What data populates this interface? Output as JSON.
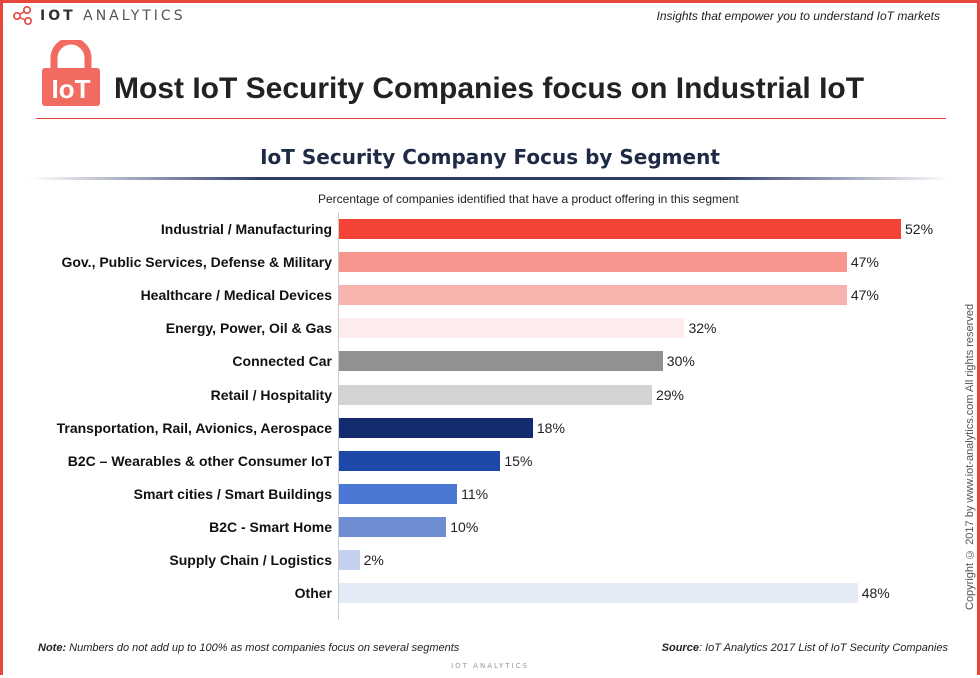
{
  "header": {
    "brand_bold": "IOT",
    "brand_rest": "ANALYTICS",
    "tagline": "Insights that empower you to understand IoT markets"
  },
  "lock_badge_text": "IoT",
  "main_title": "Most IoT Security Companies focus on Industrial IoT",
  "copyright": "Copyright © 2017 by www.iot-analytics.com All rights reserved",
  "footer": {
    "note_label": "Note:",
    "note_text": " Numbers do not add up to 100% as most companies focus on several segments",
    "source_label": "Source",
    "source_text": ": IoT Analytics 2017 List of IoT Security Companies",
    "logo_text": "IOT ANALYTICS"
  },
  "colors": {
    "accent": "#e8453c",
    "title_navy": "#1f2a44"
  },
  "chart_data": {
    "type": "bar",
    "orientation": "horizontal",
    "title": "IoT Security Company Focus by Segment",
    "subtitle": "Percentage of companies identified that have a product offering in this segment",
    "categories": [
      "Industrial / Manufacturing",
      "Gov., Public Services, Defense & Military",
      "Healthcare / Medical Devices",
      "Energy, Power, Oil & Gas",
      "Connected Car",
      "Retail / Hospitality",
      "Transportation, Rail, Avionics, Aerospace",
      "B2C – Wearables & other Consumer IoT",
      "Smart cities / Smart Buildings",
      "B2C - Smart Home",
      "Supply Chain / Logistics",
      "Other"
    ],
    "values": [
      52,
      47,
      47,
      32,
      30,
      29,
      18,
      15,
      11,
      10,
      2,
      48
    ],
    "value_labels": [
      "52%",
      "47%",
      "47%",
      "32%",
      "30%",
      "29%",
      "18%",
      "15%",
      "11%",
      "10%",
      "2%",
      "48%"
    ],
    "bar_colors": [
      "#f44336",
      "#f7958f",
      "#f9b3ae",
      "#fdeceb",
      "#919194",
      "#d3d3d4",
      "#132c70",
      "#1d47a8",
      "#4a78d4",
      "#6e8ed4",
      "#c3d1ef",
      "#e4eaf6"
    ],
    "xlim": [
      0,
      52
    ],
    "unit": "%"
  }
}
